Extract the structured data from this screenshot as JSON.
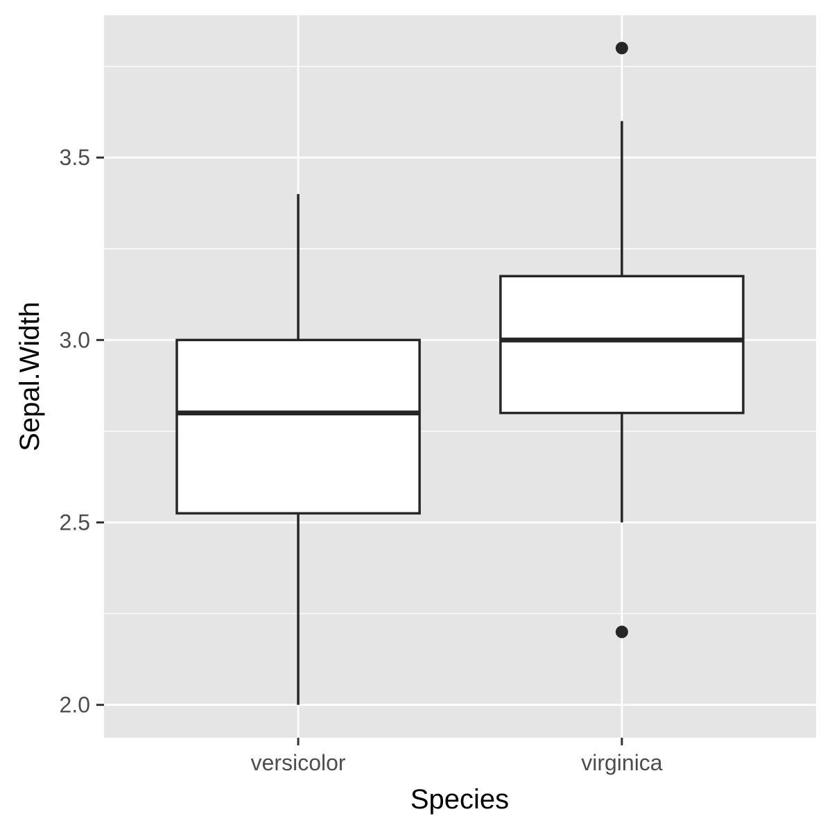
{
  "chart_data": {
    "type": "boxplot",
    "title": "",
    "xlabel": "Species",
    "ylabel": "Sepal.Width",
    "categories": [
      "versicolor",
      "virginica"
    ],
    "ylim": [
      1.91,
      3.89
    ],
    "y_ticks": [
      2.0,
      2.5,
      3.0,
      3.5
    ],
    "y_tick_labels": [
      "2.0",
      "2.5",
      "3.0",
      "3.5"
    ],
    "boxes": [
      {
        "category": "versicolor",
        "whisker_low": 2.0,
        "q1": 2.525,
        "median": 2.8,
        "q3": 3.0,
        "whisker_high": 3.4,
        "outliers": []
      },
      {
        "category": "virginica",
        "whisker_low": 2.5,
        "q1": 2.8,
        "median": 3.0,
        "q3": 3.175,
        "whisker_high": 3.6,
        "outliers": [
          3.8,
          2.2
        ]
      }
    ],
    "grid": true,
    "colors": {
      "panel": "#e5e5e5",
      "grid": "#ffffff",
      "box_fill": "#ffffff",
      "box_line": "#262626",
      "tick": "#333333",
      "tick_label": "#4d4d4d"
    }
  }
}
